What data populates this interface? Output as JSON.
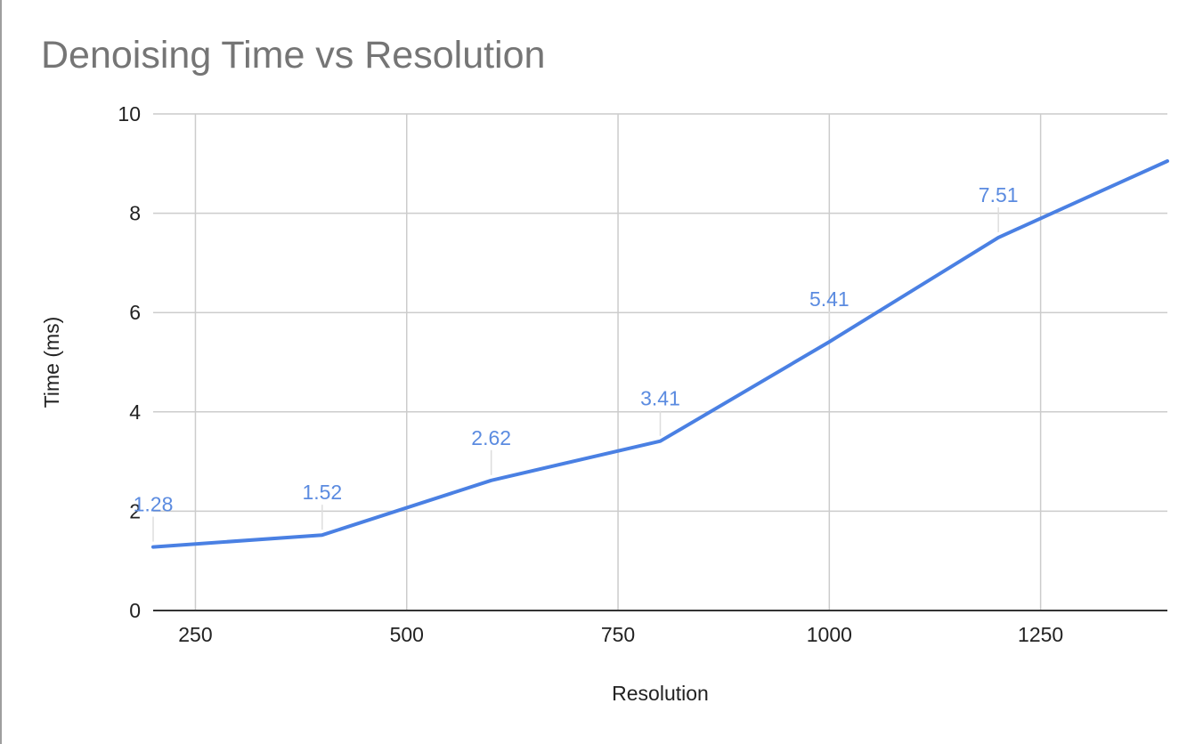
{
  "chart_data": {
    "type": "line",
    "title": "Denoising Time vs Resolution",
    "xlabel": "Resolution",
    "ylabel": "Time (ms)",
    "xlim": [
      200,
      1400
    ],
    "ylim": [
      0,
      10
    ],
    "xticks": [
      250,
      500,
      750,
      1000,
      1250
    ],
    "yticks": [
      0,
      2,
      4,
      6,
      8,
      10
    ],
    "grid": true,
    "legend": "none",
    "series": [
      {
        "color": "#4a80e3",
        "x": [
          200,
          400,
          600,
          800,
          1000,
          1200,
          1400
        ],
        "values": [
          1.28,
          1.52,
          2.62,
          3.41,
          5.41,
          7.51,
          9.05
        ],
        "data_labels": [
          "1.28",
          "1.52",
          "2.62",
          "3.41",
          "5.41",
          "7.51",
          ""
        ]
      }
    ],
    "colors": {
      "grid": "#cccccc",
      "axis": "#333333",
      "title": "#757575",
      "label": "#5b8be0"
    }
  }
}
